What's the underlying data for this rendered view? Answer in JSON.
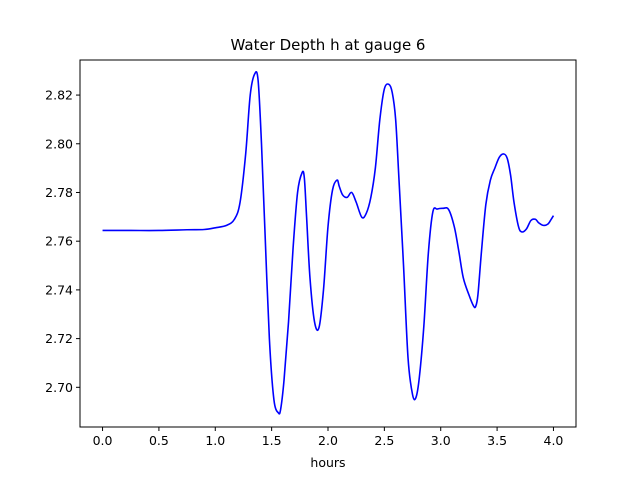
{
  "chart_data": {
    "type": "line",
    "title": "Water Depth h at gauge 6",
    "xlabel": "hours",
    "ylabel": "",
    "xlim": [
      -0.2,
      4.2
    ],
    "ylim": [
      2.6837,
      2.8344
    ],
    "xticks": [
      "0.0",
      "0.5",
      "1.0",
      "1.5",
      "2.0",
      "2.5",
      "3.0",
      "3.5",
      "4.0"
    ],
    "yticks": [
      "2.70",
      "2.72",
      "2.74",
      "2.76",
      "2.78",
      "2.80",
      "2.82"
    ],
    "grid": false,
    "series": [
      {
        "color": "#0000ff",
        "x": [
          0.0,
          0.25,
          0.5,
          0.75,
          0.9,
          1.0,
          1.1,
          1.17,
          1.22,
          1.27,
          1.31,
          1.35,
          1.38,
          1.41,
          1.44,
          1.48,
          1.52,
          1.56,
          1.58,
          1.61,
          1.65,
          1.69,
          1.73,
          1.77,
          1.79,
          1.81,
          1.84,
          1.88,
          1.92,
          1.96,
          2.0,
          2.04,
          2.08,
          2.1,
          2.13,
          2.17,
          2.21,
          2.25,
          2.3,
          2.34,
          2.38,
          2.42,
          2.46,
          2.5,
          2.54,
          2.57,
          2.6,
          2.63,
          2.67,
          2.71,
          2.75,
          2.78,
          2.81,
          2.85,
          2.89,
          2.93,
          2.97,
          3.02,
          3.07,
          3.12,
          3.16,
          3.2,
          3.25,
          3.29,
          3.31,
          3.33,
          3.36,
          3.4,
          3.44,
          3.48,
          3.52,
          3.56,
          3.59,
          3.62,
          3.65,
          3.69,
          3.72,
          3.76,
          3.8,
          3.84,
          3.87,
          3.91,
          3.95,
          3.98,
          4.0
        ],
        "y": [
          2.7644,
          2.7644,
          2.7644,
          2.7647,
          2.7648,
          2.7655,
          2.7665,
          2.769,
          2.776,
          2.796,
          2.82,
          2.8287,
          2.826,
          2.8,
          2.765,
          2.72,
          2.695,
          2.6895,
          2.691,
          2.703,
          2.727,
          2.757,
          2.78,
          2.7881,
          2.786,
          2.77,
          2.745,
          2.727,
          2.7245,
          2.74,
          2.766,
          2.781,
          2.7851,
          2.7825,
          2.779,
          2.778,
          2.78,
          2.776,
          2.7698,
          2.7715,
          2.778,
          2.79,
          2.81,
          2.8225,
          2.8244,
          2.821,
          2.81,
          2.785,
          2.75,
          2.712,
          2.697,
          2.6958,
          2.704,
          2.725,
          2.755,
          2.772,
          2.7732,
          2.7735,
          2.773,
          2.766,
          2.756,
          2.745,
          2.738,
          2.7335,
          2.7332,
          2.738,
          2.755,
          2.775,
          2.785,
          2.79,
          2.7945,
          2.7958,
          2.794,
          2.787,
          2.776,
          2.766,
          2.7638,
          2.765,
          2.7685,
          2.769,
          2.7675,
          2.7665,
          2.767,
          2.769,
          2.7705
        ]
      }
    ]
  }
}
